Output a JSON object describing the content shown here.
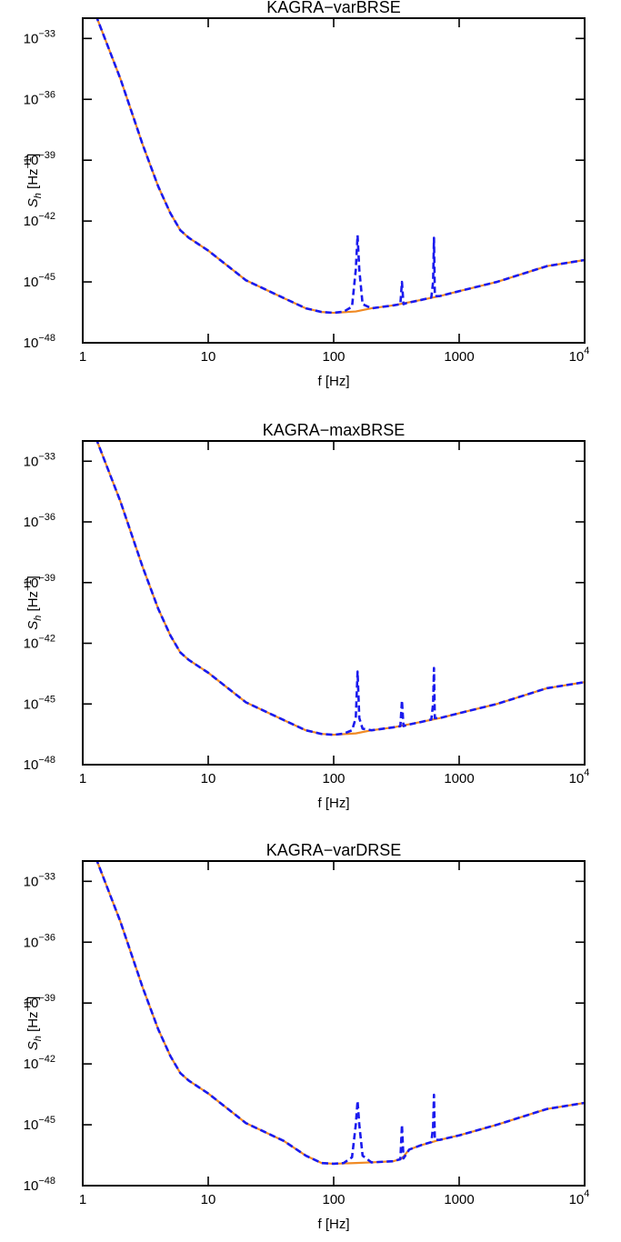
{
  "chart_data": [
    {
      "type": "line",
      "title": "KAGRA−varBRSE",
      "xlabel": "f  [Hz]",
      "ylabel": "S_h [Hz^-1]",
      "x_scale": "log",
      "y_scale": "log",
      "xlim": [
        1,
        10000
      ],
      "ylim": [
        1e-48,
        1e-32
      ],
      "x_ticks": [
        {
          "value": 1,
          "label": "1"
        },
        {
          "value": 10,
          "label": "10"
        },
        {
          "value": 100,
          "label": "100"
        },
        {
          "value": 1000,
          "label": "1000"
        },
        {
          "value": 10000,
          "label": "10",
          "sup": "4"
        }
      ],
      "y_ticks": [
        {
          "value": 1e-33,
          "label": "10",
          "sup": "−33"
        },
        {
          "value": 1e-36,
          "label": "10",
          "sup": "−36"
        },
        {
          "value": 1e-39,
          "label": "10",
          "sup": "−39"
        },
        {
          "value": 1e-42,
          "label": "10",
          "sup": "−42"
        },
        {
          "value": 1e-45,
          "label": "10",
          "sup": "−45"
        },
        {
          "value": 1e-48,
          "label": "10",
          "sup": "−48"
        }
      ],
      "series": [
        {
          "style": "solid",
          "color": "#f08a24",
          "x": [
            1.1,
            1.3,
            2,
            3,
            4,
            5,
            6,
            7,
            10,
            20,
            40,
            60,
            80,
            100,
            150,
            200,
            300,
            500,
            700,
            1000,
            2000,
            5000,
            10000
          ],
          "y": [
            3e-32,
            1e-32,
            1e-35,
            6e-39,
            5e-41,
            2.4e-42,
            3.5e-43,
            1.5e-43,
            3.5e-44,
            1.2e-45,
            1.6e-46,
            5e-47,
            3.3e-47,
            3e-47,
            3.5e-47,
            5e-47,
            7e-47,
            1.3e-46,
            2e-46,
            3.5e-46,
            1e-45,
            6e-45,
            1.2e-44
          ]
        },
        {
          "style": "dashed",
          "color": "#1a1aee",
          "x": [
            1.1,
            1.3,
            2,
            3,
            4,
            5,
            6,
            7,
            10,
            20,
            40,
            60,
            80,
            100,
            120,
            140,
            150,
            155,
            160,
            170,
            200,
            300,
            340,
            350,
            360,
            380,
            500,
            600,
            620,
            630,
            640,
            700,
            1000,
            2000,
            5000,
            10000
          ],
          "y": [
            3e-32,
            1e-32,
            1e-35,
            6e-39,
            5e-41,
            2.4e-42,
            3.5e-43,
            1.5e-43,
            3.5e-44,
            1.2e-45,
            1.6e-46,
            5e-47,
            3.3e-47,
            3e-47,
            3.4e-47,
            6e-47,
            4e-45,
            2e-43,
            4e-45,
            8e-47,
            5e-47,
            7e-47,
            8e-47,
            1e-45,
            8e-47,
            9e-47,
            1.3e-46,
            1.7e-46,
            1e-45,
            1.5e-43,
            2e-46,
            2e-46,
            3.5e-46,
            1e-45,
            6e-45,
            1.2e-44
          ]
        }
      ]
    },
    {
      "type": "line",
      "title": "KAGRA−maxBRSE",
      "xlabel": "f  [Hz]",
      "ylabel": "S_h [Hz^-1]",
      "x_scale": "log",
      "y_scale": "log",
      "xlim": [
        1,
        10000
      ],
      "ylim": [
        1e-48,
        1e-32
      ],
      "x_ticks": [
        {
          "value": 1,
          "label": "1"
        },
        {
          "value": 10,
          "label": "10"
        },
        {
          "value": 100,
          "label": "100"
        },
        {
          "value": 1000,
          "label": "1000"
        },
        {
          "value": 10000,
          "label": "10",
          "sup": "4"
        }
      ],
      "y_ticks": [
        {
          "value": 1e-33,
          "label": "10",
          "sup": "−33"
        },
        {
          "value": 1e-36,
          "label": "10",
          "sup": "−36"
        },
        {
          "value": 1e-39,
          "label": "10",
          "sup": "−39"
        },
        {
          "value": 1e-42,
          "label": "10",
          "sup": "−42"
        },
        {
          "value": 1e-45,
          "label": "10",
          "sup": "−45"
        },
        {
          "value": 1e-48,
          "label": "10",
          "sup": "−48"
        }
      ],
      "series": [
        {
          "style": "solid",
          "color": "#f08a24",
          "x": [
            1.1,
            1.3,
            2,
            3,
            4,
            5,
            6,
            7,
            10,
            20,
            40,
            60,
            80,
            100,
            150,
            200,
            300,
            500,
            700,
            1000,
            2000,
            5000,
            10000
          ],
          "y": [
            3e-32,
            1e-32,
            1e-35,
            6e-39,
            5e-41,
            2.4e-42,
            3.5e-43,
            1.5e-43,
            3.5e-44,
            1.2e-45,
            1.6e-46,
            5e-47,
            3.3e-47,
            3e-47,
            3.5e-47,
            5e-47,
            7e-47,
            1.3e-46,
            2e-46,
            3.5e-46,
            1e-45,
            6e-45,
            1.2e-44
          ]
        },
        {
          "style": "dashed",
          "color": "#1a1aee",
          "x": [
            1.1,
            1.3,
            2,
            3,
            4,
            5,
            6,
            7,
            10,
            20,
            40,
            60,
            80,
            100,
            120,
            140,
            150,
            155,
            160,
            170,
            200,
            300,
            340,
            350,
            360,
            380,
            500,
            600,
            620,
            630,
            640,
            700,
            1000,
            2000,
            5000,
            10000
          ],
          "y": [
            3e-32,
            1e-32,
            1e-35,
            6e-39,
            5e-41,
            2.4e-42,
            3.5e-43,
            1.5e-43,
            3.5e-44,
            1.2e-45,
            1.6e-46,
            5e-47,
            3.3e-47,
            3e-47,
            3.4e-47,
            5e-47,
            2e-46,
            4e-44,
            2e-46,
            6e-47,
            5e-47,
            7e-47,
            8e-47,
            1.5e-45,
            8e-47,
            9e-47,
            1.3e-46,
            1.7e-46,
            1e-45,
            6e-44,
            2e-46,
            2e-46,
            3.5e-46,
            1e-45,
            6e-45,
            1.2e-44
          ]
        }
      ]
    },
    {
      "type": "line",
      "title": "KAGRA−varDRSE",
      "xlabel": "f  [Hz]",
      "ylabel": "S_h [Hz^-1]",
      "x_scale": "log",
      "y_scale": "log",
      "xlim": [
        1,
        10000
      ],
      "ylim": [
        1e-48,
        1e-32
      ],
      "x_ticks": [
        {
          "value": 1,
          "label": "1"
        },
        {
          "value": 10,
          "label": "10"
        },
        {
          "value": 100,
          "label": "100"
        },
        {
          "value": 1000,
          "label": "1000"
        },
        {
          "value": 10000,
          "label": "10",
          "sup": "4"
        }
      ],
      "y_ticks": [
        {
          "value": 1e-33,
          "label": "10",
          "sup": "−33"
        },
        {
          "value": 1e-36,
          "label": "10",
          "sup": "−36"
        },
        {
          "value": 1e-39,
          "label": "10",
          "sup": "−39"
        },
        {
          "value": 1e-42,
          "label": "10",
          "sup": "−42"
        },
        {
          "value": 1e-45,
          "label": "10",
          "sup": "−45"
        },
        {
          "value": 1e-48,
          "label": "10",
          "sup": "−48"
        }
      ],
      "series": [
        {
          "style": "solid",
          "color": "#f08a24",
          "x": [
            1.1,
            1.3,
            2,
            3,
            4,
            5,
            6,
            7,
            10,
            20,
            40,
            60,
            80,
            100,
            150,
            200,
            300,
            350,
            400,
            500,
            700,
            1000,
            2000,
            5000,
            10000
          ],
          "y": [
            3e-32,
            1e-32,
            1e-35,
            6e-39,
            5e-41,
            2.4e-42,
            3.5e-43,
            1.5e-43,
            3.5e-44,
            1.2e-45,
            1.6e-46,
            3e-47,
            1.3e-47,
            1.2e-47,
            1.3e-47,
            1.4e-47,
            1.6e-47,
            2.2e-47,
            6e-47,
            1e-46,
            1.8e-46,
            3e-46,
            1e-45,
            6e-45,
            1.2e-44
          ]
        },
        {
          "style": "dashed",
          "color": "#1a1aee",
          "x": [
            1.1,
            1.3,
            2,
            3,
            4,
            5,
            6,
            7,
            10,
            20,
            40,
            60,
            80,
            100,
            120,
            140,
            150,
            155,
            160,
            170,
            200,
            300,
            340,
            350,
            360,
            400,
            500,
            600,
            620,
            630,
            640,
            700,
            1000,
            2000,
            5000,
            10000
          ],
          "y": [
            3e-32,
            1e-32,
            1e-35,
            6e-39,
            5e-41,
            2.4e-42,
            3.5e-43,
            1.5e-43,
            3.5e-44,
            1.2e-45,
            1.6e-46,
            3e-47,
            1.3e-47,
            1.2e-47,
            1.3e-47,
            2.5e-47,
            1e-45,
            1.5e-44,
            1e-45,
            3e-47,
            1.4e-47,
            1.6e-47,
            2e-47,
            1e-45,
            2.2e-47,
            6e-47,
            1e-46,
            1.4e-46,
            8e-46,
            3e-44,
            1.8e-46,
            1.8e-46,
            3e-46,
            1e-45,
            6e-45,
            1.2e-44
          ]
        }
      ]
    }
  ]
}
